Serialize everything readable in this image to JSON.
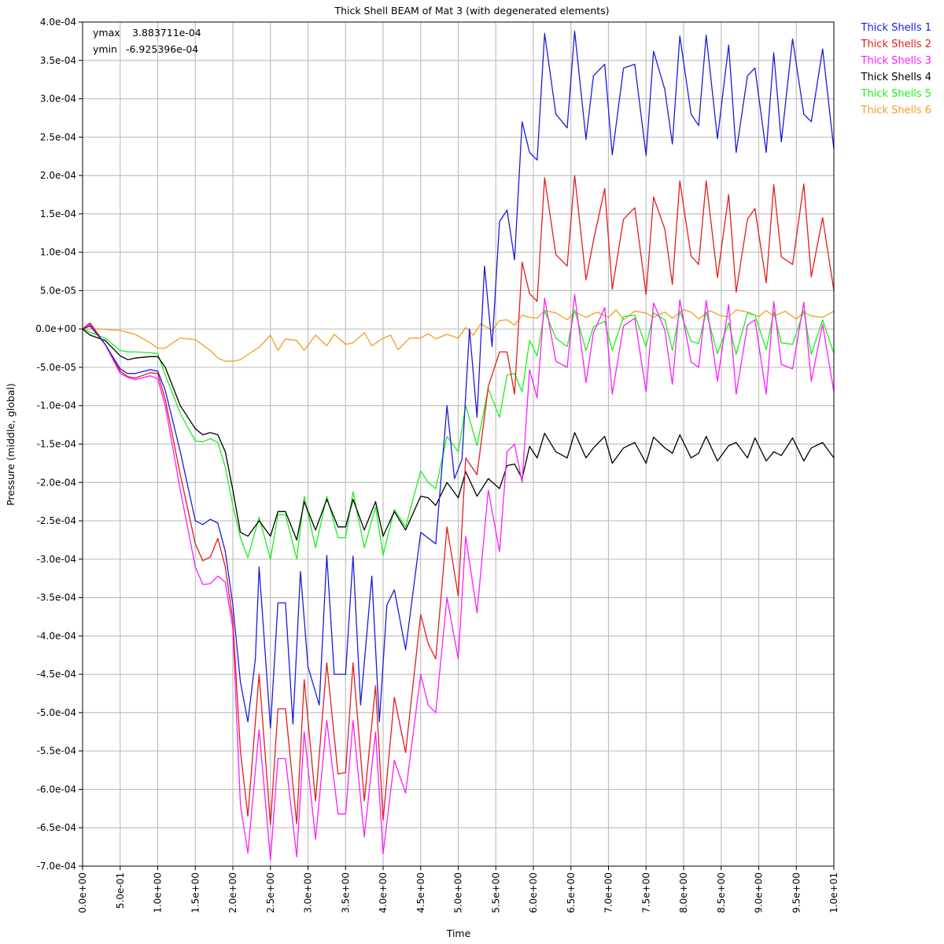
{
  "chart_data": {
    "type": "line",
    "title": "Thick Shell BEAM of Mat 3 (with degenerated elements)",
    "xlabel": "Time",
    "ylabel": "Pressure (middle, global)",
    "xlim": [
      0,
      10
    ],
    "ylim": [
      -0.0007,
      0.0004
    ],
    "grid": true,
    "legend_position": "outside-right",
    "x_ticks": [
      "0.0e+00",
      "5.0e-01",
      "1.0e+00",
      "1.5e+00",
      "2.0e+00",
      "2.5e+00",
      "3.0e+00",
      "3.5e+00",
      "4.0e+00",
      "4.5e+00",
      "5.0e+00",
      "5.5e+00",
      "6.0e+00",
      "6.5e+00",
      "7.0e+00",
      "7.5e+00",
      "8.0e+00",
      "8.5e+00",
      "9.0e+00",
      "9.5e+00",
      "1.0e+01"
    ],
    "y_ticks": [
      "4.0e-04",
      "3.5e-04",
      "3.0e-04",
      "2.5e-04",
      "2.0e-04",
      "1.5e-04",
      "1.0e-04",
      "5.0e-05",
      "0.0e+00",
      "-5.0e-05",
      "-1.0e-04",
      "-1.5e-04",
      "-2.0e-04",
      "-2.5e-04",
      "-3.0e-04",
      "-3.5e-04",
      "-4.0e-04",
      "-4.5e-04",
      "-5.0e-04",
      "-5.5e-04",
      "-6.0e-04",
      "-6.5e-04",
      "-7.0e-04"
    ],
    "annotations": {
      "ymax_label": "ymax",
      "ymax_value": "3.883711e-04",
      "ymin_label": "ymin",
      "ymin_value": "-6.925396e-04"
    },
    "series": [
      {
        "name": "Thick Shells 1",
        "color": "#1c1cdc",
        "x": [
          0,
          0.1,
          0.3,
          0.5,
          0.6,
          0.7,
          0.9,
          1.0,
          1.1,
          1.3,
          1.5,
          1.6,
          1.7,
          1.8,
          1.9,
          2.0,
          2.1,
          2.2,
          2.3,
          2.35,
          2.5,
          2.6,
          2.7,
          2.8,
          2.9,
          3.0,
          3.15,
          3.25,
          3.35,
          3.5,
          3.6,
          3.7,
          3.85,
          3.95,
          4.05,
          4.15,
          4.3,
          4.5,
          4.7,
          4.85,
          4.95,
          5.05,
          5.15,
          5.25,
          5.35,
          5.45,
          5.55,
          5.65,
          5.75,
          5.85,
          5.95,
          6.05,
          6.15,
          6.3,
          6.45,
          6.55,
          6.7,
          6.8,
          6.95,
          7.05,
          7.2,
          7.35,
          7.5,
          7.6,
          7.75,
          7.85,
          7.95,
          8.1,
          8.2,
          8.3,
          8.45,
          8.6,
          8.7,
          8.85,
          8.95,
          9.1,
          9.2,
          9.3,
          9.45,
          9.6,
          9.7,
          9.85,
          10.0
        ],
        "y": [
          0,
          4e-06,
          -2e-05,
          -5.2e-05,
          -5.8e-05,
          -5.8e-05,
          -5.3e-05,
          -5.5e-05,
          -8e-05,
          -0.00016,
          -0.00025,
          -0.000255,
          -0.000248,
          -0.000253,
          -0.00029,
          -0.00036,
          -0.00046,
          -0.000512,
          -0.00043,
          -0.00031,
          -0.00052,
          -0.000357,
          -0.000357,
          -0.000515,
          -0.000316,
          -0.00044,
          -0.00049,
          -0.000295,
          -0.00045,
          -0.00045,
          -0.000296,
          -0.00049,
          -0.000322,
          -0.000512,
          -0.00036,
          -0.00034,
          -0.000418,
          -0.000265,
          -0.00028,
          -0.0001,
          -0.000195,
          -0.00017,
          0.0,
          -0.000115,
          8.2e-05,
          -2.3e-05,
          0.00014,
          0.000155,
          9e-05,
          0.00027,
          0.00023,
          0.00022,
          0.000385,
          0.00028,
          0.000262,
          0.000388,
          0.000247,
          0.00033,
          0.000345,
          0.000227,
          0.00034,
          0.000345,
          0.000226,
          0.000362,
          0.000312,
          0.000241,
          0.000382,
          0.00028,
          0.000265,
          0.000383,
          0.000248,
          0.00037,
          0.00023,
          0.00033,
          0.00034,
          0.00023,
          0.00036,
          0.000244,
          0.000378,
          0.00028,
          0.00027,
          0.000365,
          0.000234
        ]
      },
      {
        "name": "Thick Shells 2",
        "color": "#e41c1c",
        "x": [
          0,
          0.1,
          0.3,
          0.5,
          0.6,
          0.7,
          0.9,
          1.0,
          1.1,
          1.3,
          1.5,
          1.6,
          1.7,
          1.8,
          1.9,
          2.0,
          2.1,
          2.2,
          2.35,
          2.5,
          2.6,
          2.7,
          2.85,
          2.95,
          3.1,
          3.25,
          3.4,
          3.5,
          3.6,
          3.75,
          3.9,
          4.0,
          4.15,
          4.3,
          4.5,
          4.6,
          4.7,
          4.85,
          5.0,
          5.1,
          5.25,
          5.4,
          5.55,
          5.65,
          5.75,
          5.85,
          5.95,
          6.05,
          6.15,
          6.3,
          6.45,
          6.55,
          6.7,
          6.8,
          6.95,
          7.05,
          7.2,
          7.35,
          7.5,
          7.6,
          7.75,
          7.85,
          7.95,
          8.1,
          8.2,
          8.3,
          8.45,
          8.6,
          8.7,
          8.85,
          8.95,
          9.1,
          9.2,
          9.3,
          9.45,
          9.6,
          9.7,
          9.85,
          10.0
        ],
        "y": [
          0,
          8e-06,
          -2e-05,
          -5.5e-05,
          -6.2e-05,
          -6.4e-05,
          -5.7e-05,
          -5.8e-05,
          -9.2e-05,
          -0.00019,
          -0.00028,
          -0.000302,
          -0.000297,
          -0.000273,
          -0.00031,
          -0.00038,
          -0.00055,
          -0.000635,
          -0.00045,
          -0.000646,
          -0.000495,
          -0.000495,
          -0.000645,
          -0.000457,
          -0.000615,
          -0.000435,
          -0.00058,
          -0.000578,
          -0.000435,
          -0.000615,
          -0.000465,
          -0.00064,
          -0.00048,
          -0.000552,
          -0.000372,
          -0.00041,
          -0.00043,
          -0.000258,
          -0.000348,
          -0.000168,
          -0.00019,
          -7.5e-05,
          -3e-05,
          -3e-05,
          -8.5e-05,
          8.7e-05,
          4.6e-05,
          3.6e-05,
          0.000197,
          9.7e-05,
          8.2e-05,
          0.0002,
          6.4e-05,
          0.000115,
          0.000183,
          5.2e-05,
          0.000143,
          0.000158,
          4.5e-05,
          0.000172,
          0.00013,
          5.8e-05,
          0.000193,
          9.5e-05,
          8.4e-05,
          0.000193,
          6.7e-05,
          0.000175,
          4.8e-05,
          0.000143,
          0.000157,
          6e-05,
          0.000188,
          9.4e-05,
          8.4e-05,
          0.000189,
          6.8e-05,
          0.000145,
          5e-05
        ]
      },
      {
        "name": "Thick Shells 3",
        "color": "#ff1cff",
        "x": [
          0,
          0.1,
          0.3,
          0.5,
          0.6,
          0.7,
          0.9,
          1.0,
          1.1,
          1.3,
          1.5,
          1.6,
          1.7,
          1.8,
          1.9,
          2.0,
          2.1,
          2.2,
          2.35,
          2.5,
          2.6,
          2.7,
          2.85,
          2.95,
          3.1,
          3.25,
          3.4,
          3.5,
          3.6,
          3.75,
          3.9,
          4.0,
          4.15,
          4.3,
          4.5,
          4.6,
          4.7,
          4.85,
          5.0,
          5.1,
          5.25,
          5.4,
          5.55,
          5.65,
          5.75,
          5.85,
          5.95,
          6.05,
          6.15,
          6.3,
          6.45,
          6.55,
          6.7,
          6.8,
          6.95,
          7.05,
          7.2,
          7.35,
          7.5,
          7.6,
          7.75,
          7.85,
          7.95,
          8.1,
          8.2,
          8.3,
          8.45,
          8.6,
          8.7,
          8.85,
          8.95,
          9.1,
          9.2,
          9.3,
          9.45,
          9.6,
          9.7,
          9.85,
          10.0
        ],
        "y": [
          0,
          6e-06,
          -2e-05,
          -5.8e-05,
          -6.3e-05,
          -6.6e-05,
          -6.1e-05,
          -6.5e-05,
          -0.0001,
          -0.00021,
          -0.00031,
          -0.000333,
          -0.000332,
          -0.000322,
          -0.00033,
          -0.00039,
          -0.00062,
          -0.000683,
          -0.000522,
          -0.000692,
          -0.00056,
          -0.00056,
          -0.000688,
          -0.000525,
          -0.000665,
          -0.00051,
          -0.000632,
          -0.000632,
          -0.00051,
          -0.000662,
          -0.000525,
          -0.000684,
          -0.000562,
          -0.000605,
          -0.00045,
          -0.00049,
          -0.0005,
          -0.00035,
          -0.00043,
          -0.00027,
          -0.00037,
          -0.00021,
          -0.00029,
          -0.00016,
          -0.00015,
          -0.0002,
          -5.3e-05,
          -9e-05,
          4e-05,
          -4.2e-05,
          -5e-05,
          4.5e-05,
          -7e-05,
          -5e-06,
          2.8e-05,
          -8.5e-05,
          4e-06,
          1.4e-05,
          -8.2e-05,
          3.4e-05,
          -1e-06,
          -7.2e-05,
          3.8e-05,
          -4.3e-05,
          -5e-05,
          3.7e-05,
          -6.8e-05,
          3.2e-05,
          -8.5e-05,
          5e-06,
          1.2e-05,
          -8.5e-05,
          3.6e-05,
          -4.6e-05,
          -5.2e-05,
          3.5e-05,
          -6.8e-05,
          6e-06,
          -8.2e-05
        ]
      },
      {
        "name": "Thick Shells 4",
        "color": "#000000",
        "x": [
          0,
          0.1,
          0.3,
          0.5,
          0.6,
          0.7,
          0.9,
          1.0,
          1.1,
          1.3,
          1.5,
          1.6,
          1.7,
          1.8,
          1.9,
          2.0,
          2.1,
          2.2,
          2.35,
          2.5,
          2.6,
          2.7,
          2.85,
          2.95,
          3.1,
          3.25,
          3.4,
          3.5,
          3.6,
          3.75,
          3.9,
          4.0,
          4.15,
          4.3,
          4.5,
          4.6,
          4.7,
          4.85,
          5.0,
          5.1,
          5.25,
          5.4,
          5.55,
          5.65,
          5.75,
          5.85,
          5.95,
          6.05,
          6.15,
          6.3,
          6.45,
          6.55,
          6.7,
          6.8,
          6.95,
          7.05,
          7.2,
          7.35,
          7.5,
          7.6,
          7.75,
          7.85,
          7.95,
          8.1,
          8.2,
          8.3,
          8.45,
          8.6,
          8.7,
          8.85,
          8.95,
          9.1,
          9.2,
          9.3,
          9.45,
          9.6,
          9.7,
          9.85,
          10.0
        ],
        "y": [
          0,
          -8e-06,
          -1.5e-05,
          -3.5e-05,
          -4e-05,
          -3.8e-05,
          -3.6e-05,
          -3.6e-05,
          -5e-05,
          -0.0001,
          -0.00013,
          -0.000138,
          -0.000135,
          -0.000138,
          -0.00016,
          -0.00021,
          -0.000265,
          -0.00027,
          -0.00025,
          -0.00027,
          -0.000238,
          -0.000238,
          -0.000275,
          -0.000225,
          -0.000262,
          -0.000222,
          -0.000258,
          -0.000258,
          -0.000222,
          -0.000262,
          -0.000225,
          -0.00027,
          -0.000238,
          -0.000262,
          -0.000218,
          -0.00022,
          -0.00023,
          -0.0002,
          -0.00022,
          -0.000186,
          -0.000218,
          -0.000195,
          -0.000208,
          -0.000178,
          -0.000176,
          -0.000195,
          -0.000153,
          -0.000168,
          -0.000136,
          -0.00016,
          -0.000168,
          -0.000135,
          -0.000168,
          -0.000155,
          -0.00014,
          -0.000175,
          -0.000155,
          -0.000148,
          -0.000175,
          -0.000141,
          -0.000155,
          -0.000162,
          -0.000138,
          -0.000168,
          -0.000162,
          -0.00014,
          -0.000172,
          -0.000152,
          -0.000148,
          -0.000168,
          -0.000142,
          -0.000172,
          -0.00016,
          -0.000165,
          -0.000142,
          -0.000172,
          -0.000155,
          -0.000148,
          -0.000168
        ]
      },
      {
        "name": "Thick Shells 5",
        "color": "#1cf01c",
        "x": [
          0,
          0.1,
          0.3,
          0.5,
          0.6,
          0.7,
          0.9,
          1.0,
          1.1,
          1.3,
          1.5,
          1.6,
          1.7,
          1.8,
          1.9,
          2.0,
          2.1,
          2.2,
          2.35,
          2.5,
          2.6,
          2.7,
          2.85,
          2.95,
          3.1,
          3.25,
          3.4,
          3.5,
          3.6,
          3.75,
          3.9,
          4.0,
          4.15,
          4.3,
          4.5,
          4.6,
          4.7,
          4.85,
          5.0,
          5.1,
          5.25,
          5.4,
          5.55,
          5.65,
          5.75,
          5.85,
          5.95,
          6.05,
          6.15,
          6.3,
          6.45,
          6.55,
          6.7,
          6.8,
          6.95,
          7.05,
          7.2,
          7.35,
          7.5,
          7.6,
          7.75,
          7.85,
          7.95,
          8.1,
          8.2,
          8.3,
          8.45,
          8.6,
          8.7,
          8.85,
          8.95,
          9.1,
          9.2,
          9.3,
          9.45,
          9.6,
          9.7,
          9.85,
          10.0
        ],
        "y": [
          0,
          -4e-06,
          -1.2e-05,
          -2.8e-05,
          -3e-05,
          -3e-05,
          -3.1e-05,
          -3.2e-05,
          -6e-05,
          -0.00011,
          -0.000146,
          -0.000147,
          -0.000143,
          -0.000148,
          -0.00018,
          -0.00023,
          -0.000272,
          -0.000298,
          -0.000245,
          -0.0003,
          -0.000242,
          -0.000242,
          -0.0003,
          -0.000218,
          -0.000285,
          -0.000218,
          -0.000272,
          -0.000272,
          -0.000212,
          -0.000285,
          -0.000232,
          -0.000295,
          -0.000235,
          -0.000258,
          -0.000185,
          -0.0002,
          -0.000208,
          -0.00014,
          -0.00016,
          -0.0001,
          -0.000152,
          -7.8e-05,
          -0.000115,
          -6e-05,
          -5.8e-05,
          -8.2e-05,
          -1.5e-05,
          -3.5e-05,
          2.4e-05,
          -1.2e-05,
          -2.3e-05,
          2.5e-05,
          -2.8e-05,
          3e-06,
          1e-05,
          -2.8e-05,
          1.6e-05,
          1.8e-05,
          -2.3e-05,
          2.1e-05,
          1.2e-05,
          -2.8e-05,
          2.3e-05,
          -1.6e-05,
          -1.9e-05,
          2.2e-05,
          -3.2e-05,
          8e-06,
          -3.3e-05,
          2.1e-05,
          1.8e-05,
          -2.7e-05,
          2.2e-05,
          -1.8e-05,
          -2e-05,
          2.4e-05,
          -3.3e-05,
          1.2e-05,
          -3.2e-05
        ]
      },
      {
        "name": "Thick Shells 6",
        "color": "#f0a01c",
        "x": [
          0,
          0.2,
          0.5,
          0.7,
          0.9,
          1.0,
          1.1,
          1.2,
          1.3,
          1.5,
          1.7,
          1.8,
          1.9,
          2.0,
          2.1,
          2.25,
          2.35,
          2.5,
          2.6,
          2.7,
          2.85,
          2.95,
          3.1,
          3.25,
          3.35,
          3.5,
          3.6,
          3.75,
          3.85,
          4.0,
          4.1,
          4.2,
          4.35,
          4.5,
          4.6,
          4.7,
          4.85,
          5.0,
          5.1,
          5.2,
          5.3,
          5.45,
          5.55,
          5.65,
          5.75,
          5.85,
          5.95,
          6.05,
          6.15,
          6.3,
          6.45,
          6.55,
          6.7,
          6.85,
          7.0,
          7.1,
          7.2,
          7.35,
          7.5,
          7.6,
          7.75,
          7.85,
          8.0,
          8.1,
          8.2,
          8.35,
          8.5,
          8.6,
          8.7,
          8.85,
          9.0,
          9.1,
          9.2,
          9.35,
          9.5,
          9.6,
          9.7,
          9.85,
          10.0
        ],
        "y": [
          0,
          0.0,
          -2e-06,
          -7e-06,
          -1.8e-05,
          -2.5e-05,
          -2.5e-05,
          -1.8e-05,
          -1.2e-05,
          -1.4e-05,
          -2.8e-05,
          -3.8e-05,
          -4.2e-05,
          -4.2e-05,
          -4e-05,
          -3e-05,
          -2.4e-05,
          -8e-06,
          -2.8e-05,
          -1.3e-05,
          -1.5e-05,
          -2.8e-05,
          -8e-06,
          -2.2e-05,
          -7e-06,
          -2e-05,
          -1.8e-05,
          -5e-06,
          -2.2e-05,
          -1.2e-05,
          -8e-06,
          -2.7e-05,
          -1.2e-05,
          -1.2e-05,
          -6e-06,
          -1.3e-05,
          -7e-06,
          -1.2e-05,
          2e-06,
          -8e-06,
          7e-06,
          -2e-06,
          1.1e-05,
          1.2e-05,
          5e-06,
          1.8e-05,
          1.5e-05,
          1.4e-05,
          2.4e-05,
          2.1e-05,
          1.2e-05,
          2.2e-05,
          1.5e-05,
          2.2e-05,
          1.5e-05,
          2.5e-05,
          1.2e-05,
          2.3e-05,
          2.1e-05,
          1.5e-05,
          2.2e-05,
          1.4e-05,
          2.5e-05,
          2.2e-05,
          1.3e-05,
          2.4e-05,
          1.7e-05,
          1.6e-05,
          2.5e-05,
          2.2e-05,
          1.6e-05,
          2.4e-05,
          1.7e-05,
          2.3e-05,
          1.3e-05,
          2.2e-05,
          1.7e-05,
          1.5e-05,
          2.3e-05
        ]
      }
    ]
  }
}
